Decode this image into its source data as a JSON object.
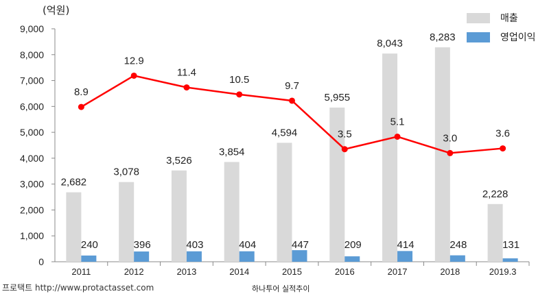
{
  "chart_data": {
    "type": "bar",
    "ylabel": "(억원)",
    "categories": [
      "2011",
      "2012",
      "2013",
      "2014",
      "2015",
      "2016",
      "2017",
      "2018",
      "2019.3"
    ],
    "series": [
      {
        "name": "매출",
        "values": [
          2682,
          3078,
          3526,
          3854,
          4594,
          5955,
          8043,
          8283,
          2228
        ],
        "labels": [
          "2,682",
          "3,078",
          "3,526",
          "3,854",
          "4,594",
          "5,955",
          "8,043",
          "8,283",
          "2,228"
        ],
        "color": "#d9d9d9"
      },
      {
        "name": "영업이익",
        "values": [
          240,
          396,
          403,
          404,
          447,
          209,
          414,
          248,
          131
        ],
        "labels": [
          "240",
          "396",
          "403",
          "404",
          "447",
          "209",
          "414",
          "248",
          "131"
        ],
        "color": "#5b9bd5"
      }
    ],
    "line_series": {
      "values": [
        8.9,
        12.9,
        11.4,
        10.5,
        9.7,
        3.5,
        5.1,
        3.0,
        3.6
      ],
      "labels": [
        "8.9",
        "12.9",
        "11.4",
        "10.5",
        "9.7",
        "3.5",
        "5.1",
        "3.0",
        "3.6"
      ],
      "color": "#ff0000"
    },
    "ylim": [
      0,
      9000
    ],
    "yticks": [
      "0",
      "1,000",
      "2,000",
      "3,000",
      "4,000",
      "5,000",
      "6,000",
      "7,000",
      "8,000",
      "9,000"
    ],
    "grid": false,
    "legend": "top-right",
    "caption": "하나투어 실적추이",
    "source": "프로택트 http://www.protactasset.com"
  }
}
